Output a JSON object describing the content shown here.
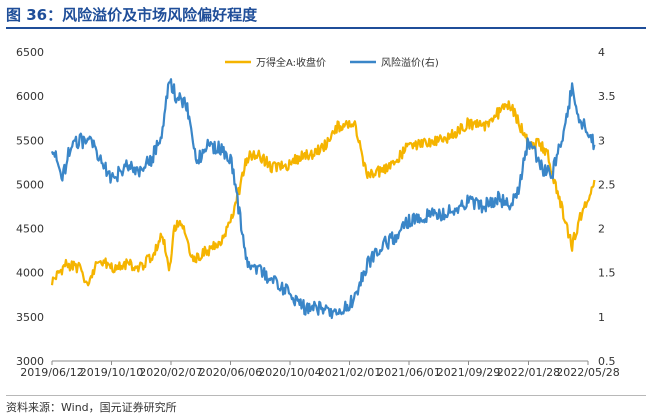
{
  "figure": {
    "title": "图 36：风险溢价及市场风险偏好程度",
    "source": "资料来源：Wind，国元证券研究所"
  },
  "chart_data": {
    "type": "line",
    "x_ticks": [
      "2019/06/12",
      "2019/10/10",
      "2020/02/07",
      "2020/06/06",
      "2020/10/04",
      "2021/02/01",
      "2021/06/01",
      "2021/09/29",
      "2022/01/28",
      "2022/05/28"
    ],
    "y_left": {
      "ticks": [
        "3000",
        "3500",
        "4000",
        "4500",
        "5000",
        "5500",
        "6000",
        "6500"
      ],
      "lim": [
        3000,
        6500
      ]
    },
    "y_right": {
      "ticks": [
        "0.5",
        "1",
        "1.5",
        "2",
        "2.5",
        "3",
        "3.5",
        "4"
      ],
      "lim": [
        0.5,
        4
      ]
    },
    "legend_position": "top-center",
    "grid": false,
    "series": [
      {
        "name": "万得全A:收盘价",
        "axis": "left",
        "color": "#f5b400",
        "x": [
          "2019-06-12",
          "2019-07-10",
          "2019-08-07",
          "2019-08-20",
          "2019-09-16",
          "2019-10-10",
          "2019-11-07",
          "2019-12-05",
          "2019-12-31",
          "2020-01-21",
          "2020-02-03",
          "2020-02-12",
          "2020-02-25",
          "2020-03-23",
          "2020-04-21",
          "2020-05-19",
          "2020-06-06",
          "2020-06-22",
          "2020-07-06",
          "2020-07-09",
          "2020-07-31",
          "2020-08-28",
          "2020-09-25",
          "2020-10-20",
          "2020-11-20",
          "2020-12-17",
          "2021-01-08",
          "2021-02-10",
          "2021-03-09",
          "2021-04-06",
          "2021-05-04",
          "2021-06-01",
          "2021-06-28",
          "2021-07-28",
          "2021-08-25",
          "2021-09-29",
          "2021-10-28",
          "2021-11-26",
          "2021-12-23",
          "2022-01-28",
          "2022-02-21",
          "2022-03-08",
          "2022-03-16",
          "2022-04-26",
          "2022-05-10",
          "2022-05-28",
          "2022-06-10"
        ],
        "y": [
          3900,
          4100,
          4050,
          3850,
          4150,
          4050,
          4100,
          4050,
          4200,
          4450,
          3980,
          4450,
          4600,
          4150,
          4250,
          4350,
          4550,
          4900,
          5250,
          5300,
          5350,
          5200,
          5200,
          5300,
          5350,
          5450,
          5650,
          5700,
          5100,
          5150,
          5250,
          5450,
          5450,
          5500,
          5550,
          5700,
          5650,
          5800,
          5900,
          5450,
          5450,
          5350,
          5150,
          4300,
          4600,
          4800,
          5050
        ]
      },
      {
        "name": "风险溢价(右)",
        "axis": "right",
        "color": "#3a86c8",
        "x": [
          "2019-06-12",
          "2019-07-03",
          "2019-07-17",
          "2019-08-07",
          "2019-09-04",
          "2019-10-10",
          "2019-11-07",
          "2019-12-05",
          "2019-12-31",
          "2020-01-21",
          "2020-02-03",
          "2020-02-17",
          "2020-03-09",
          "2020-03-30",
          "2020-04-21",
          "2020-05-19",
          "2020-06-06",
          "2020-06-22",
          "2020-07-09",
          "2020-08-07",
          "2020-09-04",
          "2020-10-04",
          "2020-11-04",
          "2020-12-04",
          "2021-01-08",
          "2021-02-10",
          "2021-03-09",
          "2021-04-06",
          "2021-05-04",
          "2021-06-01",
          "2021-06-28",
          "2021-07-28",
          "2021-08-25",
          "2021-09-29",
          "2021-10-28",
          "2021-11-26",
          "2021-12-23",
          "2022-01-10",
          "2022-01-28",
          "2022-02-21",
          "2022-03-16",
          "2022-04-05",
          "2022-04-26",
          "2022-05-10",
          "2022-05-28",
          "2022-06-10"
        ],
        "y": [
          2.95,
          2.55,
          2.9,
          3.0,
          2.95,
          2.55,
          2.7,
          2.65,
          2.8,
          3.1,
          3.7,
          3.5,
          3.4,
          2.75,
          2.95,
          2.9,
          2.8,
          2.25,
          1.6,
          1.5,
          1.4,
          1.25,
          1.1,
          1.1,
          1.0,
          1.2,
          1.6,
          1.8,
          1.9,
          2.1,
          2.15,
          2.15,
          2.2,
          2.3,
          2.25,
          2.35,
          2.25,
          2.5,
          3.0,
          2.7,
          2.6,
          3.0,
          3.6,
          3.25,
          3.1,
          2.95
        ]
      }
    ]
  }
}
